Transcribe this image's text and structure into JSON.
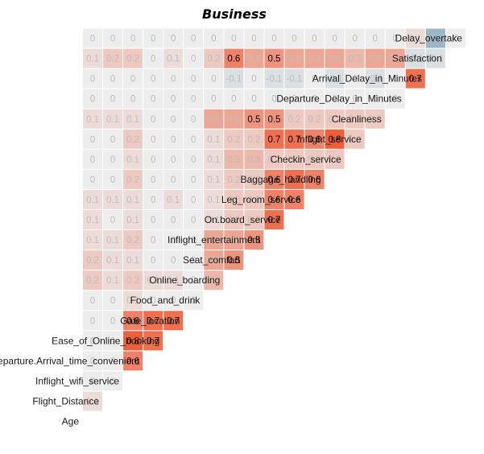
{
  "chart_data": {
    "type": "heatmap",
    "title": "Business",
    "variables": [
      "Age",
      "Flight_Distance",
      "Inflight_wifi_service",
      "Departure.Arrival_time_convenient",
      "Ease_of_Online_booking",
      "Gate_location",
      "Food_and_drink",
      "Online_boarding",
      "Seat_comfort",
      "Inflight_entertainment",
      "On.board_service",
      "Leg_room_service",
      "Baggage_handling",
      "Checkin_service",
      "Inflight_service",
      "Cleanliness",
      "Departure_Delay_in_Minutes",
      "Arrival_Delay_in_Minutes",
      "Satisfaction",
      "Delay_overtake"
    ],
    "values": [
      [],
      [
        0.1
      ],
      [
        0,
        0
      ],
      [
        0,
        0,
        0.6
      ],
      [
        0,
        0,
        0.8,
        0.7
      ],
      [
        0,
        0,
        0.6,
        0.7,
        0.7
      ],
      [
        0,
        0,
        0.1,
        0,
        0,
        0
      ],
      [
        0.2,
        0.1,
        0.2,
        0.1,
        0.1,
        0,
        0.3
      ],
      [
        0.2,
        0.1,
        0.1,
        0,
        0,
        0,
        0.4,
        0.5
      ],
      [
        0.1,
        0.1,
        0.2,
        0,
        0,
        0,
        0.4,
        0.4,
        0.5
      ],
      [
        0.1,
        0,
        0.1,
        0,
        0,
        0,
        0.1,
        0.2,
        0.2,
        0.7
      ],
      [
        0.1,
        0.1,
        0.1,
        0,
        0.1,
        0,
        0.1,
        0.2,
        0.2,
        0.6,
        0.6
      ],
      [
        0,
        0,
        0.2,
        0,
        0,
        0,
        0.1,
        0.2,
        0.2,
        0.6,
        0.7,
        0.6
      ],
      [
        0,
        0,
        0.1,
        0,
        0,
        0,
        0.1,
        0.3,
        0.3,
        0.2,
        0.2,
        0.2,
        0.2
      ],
      [
        0,
        0,
        0.2,
        0,
        0,
        0,
        0.1,
        0.2,
        0.2,
        0.7,
        0.7,
        0.6,
        0.8,
        0.2
      ],
      [
        0.1,
        0.1,
        0.1,
        0,
        0,
        0,
        0.4,
        0.4,
        0.5,
        0.5,
        0.2,
        0.2,
        0.2,
        0.2,
        0.2
      ],
      [
        0,
        0,
        0,
        0,
        0,
        0,
        0,
        0,
        0,
        0,
        0,
        0,
        0,
        0,
        0,
        0
      ],
      [
        0,
        0,
        0,
        0,
        0,
        0,
        0,
        -0.1,
        0,
        -0.1,
        -0.1,
        0,
        -0.1,
        0,
        -0.1,
        0,
        0.7
      ],
      [
        0.1,
        0.2,
        0.2,
        0,
        0.1,
        0,
        0.2,
        0.6,
        0.4,
        0.5,
        0.4,
        0.4,
        0.4,
        0.3,
        0.4,
        0.4,
        -0.1,
        -0.1
      ],
      [
        0,
        0,
        0,
        0,
        0,
        0,
        0,
        0,
        0,
        0,
        0,
        0,
        0,
        0,
        0,
        0,
        0.1,
        -0.4,
        0
      ]
    ],
    "value_range": [
      -1,
      1
    ],
    "grid": false,
    "legend": "none"
  },
  "colors": {
    "positive": "#ee5e3b",
    "neutral": "#ededed",
    "negative": "#4d7f9c",
    "text_dark": "#000000",
    "text_light": "#bdbdbd"
  }
}
